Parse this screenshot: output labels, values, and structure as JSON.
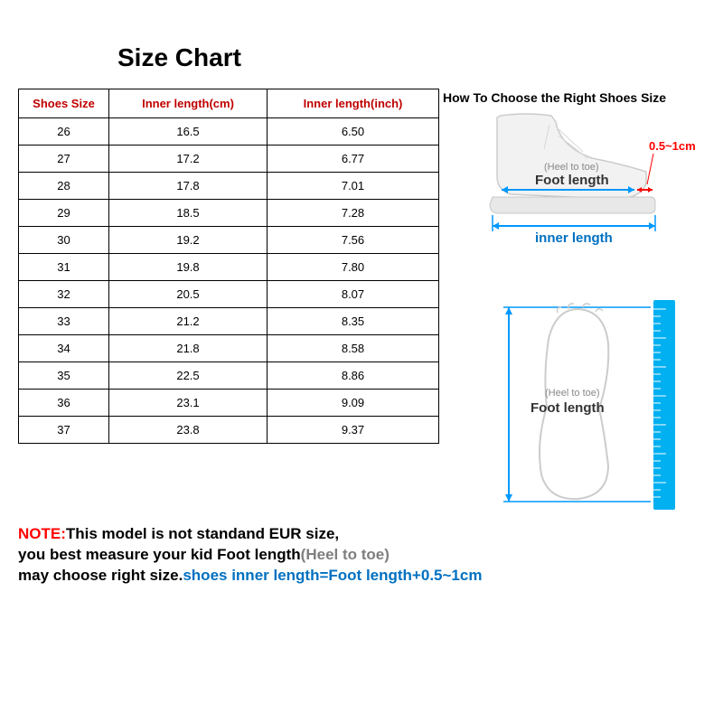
{
  "title": "Size Chart",
  "how_title": "How To Choose the Right  Shoes Size",
  "table": {
    "columns": [
      "Shoes Size",
      "Inner length(cm)",
      "Inner length(inch)"
    ],
    "rows": [
      [
        "26",
        "16.5",
        "6.50"
      ],
      [
        "27",
        "17.2",
        "6.77"
      ],
      [
        "28",
        "17.8",
        "7.01"
      ],
      [
        "29",
        "18.5",
        "7.28"
      ],
      [
        "30",
        "19.2",
        "7.56"
      ],
      [
        "31",
        "19.8",
        "7.80"
      ],
      [
        "32",
        "20.5",
        "8.07"
      ],
      [
        "33",
        "21.2",
        "8.35"
      ],
      [
        "34",
        "21.8",
        "8.58"
      ],
      [
        "35",
        "22.5",
        "8.86"
      ],
      [
        "36",
        "23.1",
        "9.09"
      ],
      [
        "37",
        "23.8",
        "9.37"
      ]
    ],
    "header_color": "#c00000",
    "border_color": "#000000",
    "font_size": 13
  },
  "diagram": {
    "shoe": {
      "heel_toe_label": "(Heel to toe)",
      "foot_length_label": "Foot length",
      "inner_length_label": "inner length",
      "gap_label": "0.5~1cm",
      "shoe_outline_color": "#d0d0d0",
      "arrow_color": "#0099ff",
      "gap_color": "#ff0000",
      "text_color_gray": "#888888",
      "text_color_dark": "#333333"
    },
    "foot": {
      "heel_toe_label": "(Heel to toe)",
      "foot_length_label": "Foot length",
      "foot_outline_color": "#cccccc",
      "arrow_color": "#0099ff",
      "ruler_color": "#00b0f0"
    }
  },
  "note": {
    "label": "NOTE:",
    "line1a": "This model is not standand EUR size,",
    "line2a": "you best measure your kid Foot length",
    "line2b": "(Heel to toe)",
    "line3a": "may choose right size.",
    "line3b": "shoes inner length=Foot length+0.5~1cm",
    "colors": {
      "red": "#ff0000",
      "gray": "#7f7f7f",
      "blue": "#0070c0"
    }
  }
}
